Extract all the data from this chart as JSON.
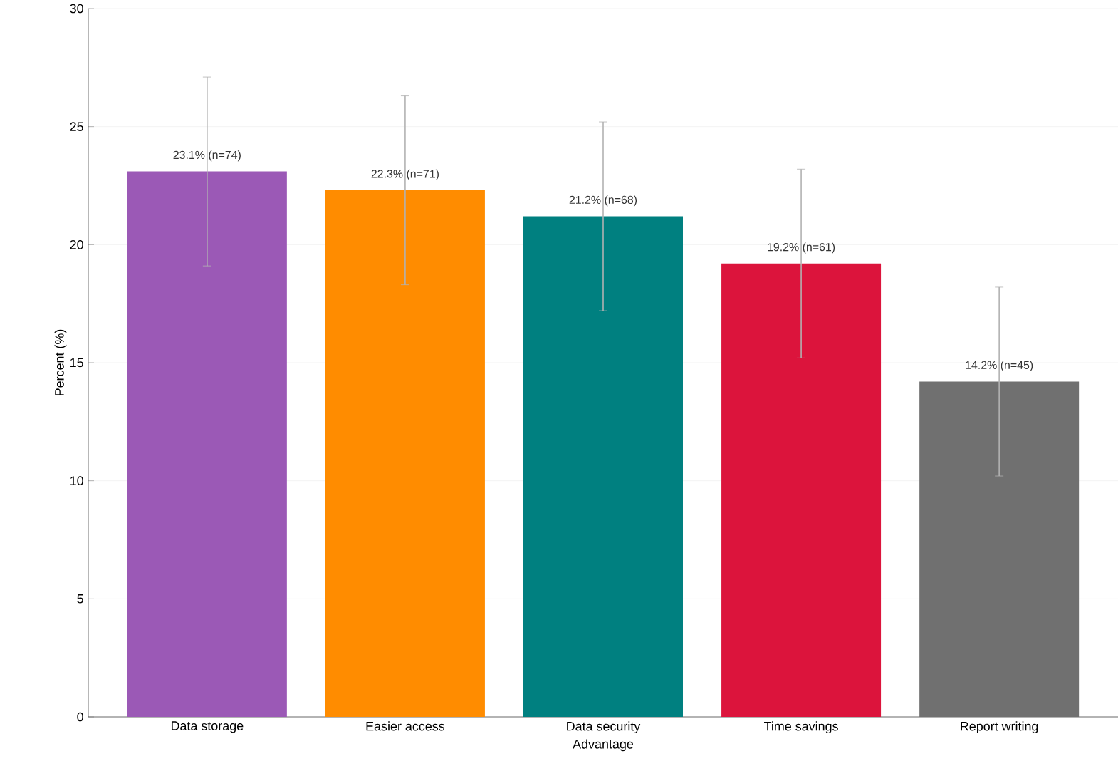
{
  "chart_data": {
    "type": "bar",
    "xlabel": "Advantage",
    "ylabel": "Percent (%)",
    "categories": [
      "Data storage",
      "Easier access",
      "Data security",
      "Time savings",
      "Report writing"
    ],
    "values": [
      23.1,
      22.3,
      21.2,
      19.2,
      14.2
    ],
    "colors": [
      "#9b59b6",
      "#ff8c00",
      "#008080",
      "#dc143c",
      "#707070"
    ],
    "errors": [
      4.0,
      4.0,
      4.0,
      4.0,
      4.0
    ],
    "value_labels": [
      "23.1% (n=74)",
      "22.3% (n=71)",
      "21.2% (n=68)",
      "19.2% (n=61)",
      "14.2% (n=45)"
    ],
    "ylim": [
      0,
      30
    ],
    "yticks": [
      0,
      5,
      10,
      15,
      20,
      25,
      30
    ],
    "grid": "y"
  }
}
